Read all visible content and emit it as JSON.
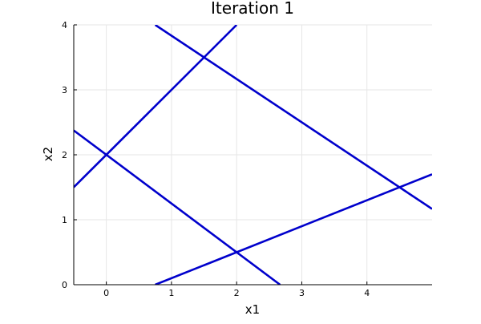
{
  "chart_data": {
    "type": "line",
    "title": "Iteration 1",
    "xlabel": "x1",
    "ylabel": "x2",
    "xlim": [
      -0.5,
      5.0
    ],
    "ylim": [
      0,
      4
    ],
    "xticks": [
      0,
      1,
      2,
      3,
      4
    ],
    "yticks": [
      0,
      1,
      2,
      3,
      4
    ],
    "grid": true,
    "legend": "none",
    "line_color": "#0000cc",
    "grid_color": "#e6e6e6",
    "axis_color": "#000000",
    "series": [
      {
        "x": [
          -0.5,
          2.0
        ],
        "y": [
          1.5,
          4.0
        ]
      },
      {
        "x": [
          0.75,
          5.0
        ],
        "y": [
          4.0,
          1.1667
        ]
      },
      {
        "x": [
          -0.5,
          2.6667
        ],
        "y": [
          2.375,
          0.0
        ]
      },
      {
        "x": [
          0.75,
          5.0
        ],
        "y": [
          0.0,
          1.7
        ]
      }
    ]
  }
}
